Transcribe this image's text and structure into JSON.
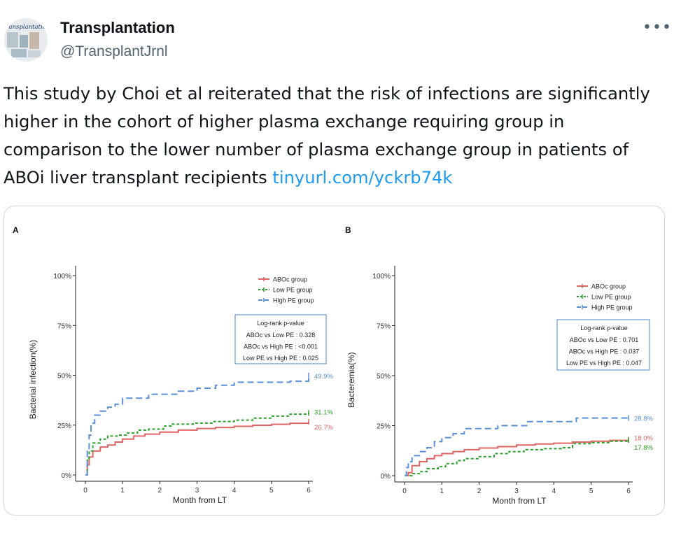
{
  "account": {
    "name": "Transplantation",
    "handle": "@TransplantJrnl",
    "avatar_text": "Transplantation"
  },
  "more_label": "•••",
  "tweet": {
    "text": "This study by Choi et al reiterated that the risk of infections are significantly higher in the cohort of higher plasma exchange requiring group in comparison to the lower number of plasma exchange group in patients of ABOi liver transplant recipients ",
    "link": "tinyurl.com/yckrb74k"
  },
  "colors": {
    "link": "#1d9bf0",
    "abo": "#e06666",
    "low": "#2ca02c",
    "high": "#5b8fd6"
  },
  "chart_data": [
    {
      "panel_label": "A",
      "type": "line",
      "xlabel": "Month from LT",
      "ylabel": "Bacterial infection(%)",
      "xlim": [
        0,
        6
      ],
      "ylim": [
        0,
        100
      ],
      "xticks": [
        "0",
        "1",
        "2",
        "3",
        "4",
        "5",
        "6"
      ],
      "yticks": [
        "0%",
        "25%",
        "50%",
        "75%",
        "100%"
      ],
      "legend_position": "top-right",
      "series": [
        {
          "name": "ABOc group",
          "color": "#e06666",
          "dash": "solid",
          "end_label": "26.7%",
          "x": [
            0,
            0.05,
            0.1,
            0.2,
            0.4,
            0.6,
            0.8,
            1.0,
            1.3,
            1.6,
            2.0,
            2.5,
            3.0,
            3.5,
            4.0,
            4.5,
            5.0,
            5.5,
            6.0
          ],
          "y": [
            0,
            5,
            9,
            12,
            14,
            15,
            16.5,
            18,
            19.5,
            20.5,
            21.5,
            22.5,
            23.3,
            23.8,
            24.4,
            24.9,
            25.4,
            25.9,
            26.7
          ]
        },
        {
          "name": "Low PE group",
          "color": "#2ca02c",
          "dash": "dashed",
          "end_label": "31.1%",
          "x": [
            0,
            0.05,
            0.1,
            0.2,
            0.4,
            0.6,
            0.9,
            1.1,
            1.4,
            1.7,
            2.1,
            2.3,
            2.9,
            3.4,
            4.0,
            4.5,
            5.0,
            5.5,
            6.0
          ],
          "y": [
            0,
            8,
            12,
            16,
            18,
            19.5,
            20,
            21,
            22.5,
            23,
            24.5,
            25.5,
            26,
            26.8,
            27.5,
            28.5,
            29.5,
            30.5,
            31.1
          ]
        },
        {
          "name": "High PE group",
          "color": "#5b8fd6",
          "dash": "longdash",
          "end_label": "49.9%",
          "x": [
            0,
            0.05,
            0.1,
            0.15,
            0.25,
            0.4,
            0.6,
            0.8,
            1.0,
            1.3,
            1.7,
            2.0,
            2.5,
            3.0,
            3.5,
            4.0,
            4.5,
            5.0,
            5.5,
            6.0
          ],
          "y": [
            0,
            12,
            20,
            26,
            30,
            32,
            34,
            35.5,
            38.5,
            38.5,
            40.5,
            40.5,
            42,
            43.5,
            45,
            46.5,
            46.5,
            46.5,
            47,
            49.9
          ]
        }
      ],
      "annotation": {
        "title": "Log-rank p-value",
        "lines": [
          "ABOc vs Low PE : 0.328",
          "ABOc vs High PE : <0.001",
          "Low PE vs High PE : 0.025"
        ]
      }
    },
    {
      "panel_label": "B",
      "type": "line",
      "xlabel": "Month from LT",
      "ylabel": "Bacteremia(%)",
      "xlim": [
        0,
        6
      ],
      "ylim": [
        0,
        100
      ],
      "xticks": [
        "0",
        "1",
        "2",
        "3",
        "4",
        "5",
        "6"
      ],
      "yticks": [
        "0%",
        "25%",
        "50%",
        "75%",
        "100%"
      ],
      "legend_position": "top-right",
      "series": [
        {
          "name": "ABOc group",
          "color": "#e06666",
          "dash": "solid",
          "end_label": "18.0%",
          "x": [
            0,
            0.1,
            0.2,
            0.4,
            0.6,
            0.8,
            1.0,
            1.3,
            1.6,
            2.0,
            2.5,
            3.0,
            3.5,
            4.0,
            4.5,
            5.0,
            5.5,
            6.0
          ],
          "y": [
            0,
            1.5,
            5,
            7,
            8.5,
            10,
            11,
            12,
            13,
            13.8,
            14.5,
            15.3,
            15.8,
            16.2,
            16.8,
            17.2,
            17.6,
            18.0
          ]
        },
        {
          "name": "Low PE group",
          "color": "#2ca02c",
          "dash": "dashed",
          "end_label": "17.8%",
          "x": [
            0,
            0.2,
            0.4,
            0.6,
            0.9,
            1.1,
            1.4,
            1.6,
            2.0,
            2.4,
            2.8,
            3.2,
            3.7,
            4.2,
            4.5,
            5.0,
            5.5,
            6.0
          ],
          "y": [
            0,
            1,
            2,
            3.5,
            4.5,
            6,
            7.5,
            8.5,
            9.5,
            11,
            12,
            13,
            13.5,
            14,
            16,
            16.5,
            17.2,
            17.8
          ]
        },
        {
          "name": "High PE group",
          "color": "#5b8fd6",
          "dash": "longdash",
          "end_label": "28.8%",
          "x": [
            0,
            0.05,
            0.1,
            0.2,
            0.4,
            0.6,
            0.8,
            1.0,
            1.3,
            1.6,
            2.0,
            2.5,
            3.0,
            3.3,
            4.0,
            4.5,
            4.6,
            5.0,
            5.5,
            6.0
          ],
          "y": [
            0,
            4,
            7,
            10,
            12,
            14,
            17,
            19,
            21,
            23.5,
            23.5,
            25,
            25,
            27,
            27,
            27,
            28.8,
            28.8,
            28.8,
            28.8
          ]
        }
      ],
      "annotation": {
        "title": "Log-rank p-value",
        "lines": [
          "ABOc vs Low PE : 0.701",
          "ABOc vs High PE : 0.037",
          "Low PE vs High PE : 0.047"
        ]
      }
    }
  ]
}
